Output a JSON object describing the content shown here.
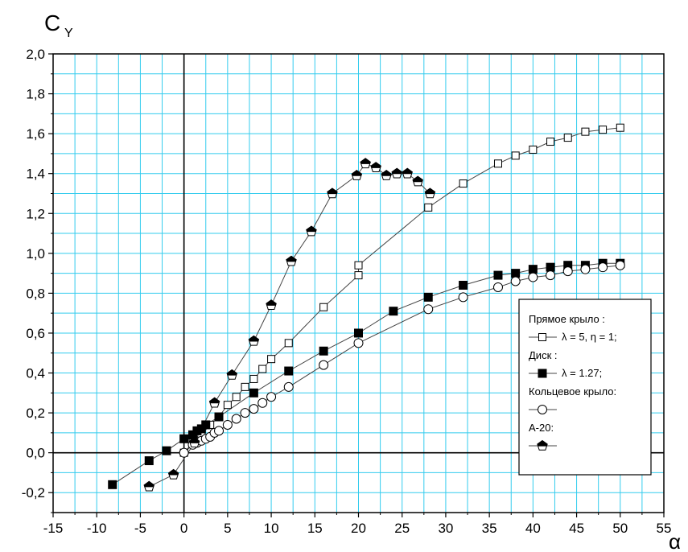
{
  "chart_data": {
    "type": "scatter",
    "title": "",
    "ylabel_main": "C",
    "ylabel_sub": "Y",
    "xlabel": "α",
    "xlim": [
      -15,
      55
    ],
    "ylim": [
      -0.3,
      2.0
    ],
    "x_ticks": [
      -15,
      -10,
      -5,
      0,
      5,
      10,
      15,
      20,
      25,
      30,
      35,
      40,
      45,
      50,
      55
    ],
    "y_ticks": [
      -0.2,
      0.0,
      0.2,
      0.4,
      0.6,
      0.8,
      1.0,
      1.2,
      1.4,
      1.6,
      1.8,
      2.0
    ],
    "x_tick_labels": [
      "-15",
      "-10",
      "-5",
      "0",
      "5",
      "10",
      "15",
      "20",
      "25",
      "30",
      "35",
      "40",
      "45",
      "50",
      "55"
    ],
    "y_tick_labels": [
      "-0,2",
      "0,0",
      "0,2",
      "0,4",
      "0,6",
      "0,8",
      "1,0",
      "1,2",
      "1,4",
      "1,6",
      "1,8",
      "2,0"
    ],
    "grid": true,
    "grid_color": "#33ccee",
    "legend_position": "right",
    "legend": [
      {
        "heading": "Прямое крыло :",
        "label": "λ = 5, η = 1;",
        "marker": "open-square"
      },
      {
        "heading": "Диск :",
        "label": "λ = 1.27;",
        "marker": "filled-square"
      },
      {
        "heading": "Кольцевое крыло:",
        "label": "",
        "marker": "open-circle"
      },
      {
        "heading": "А-20:",
        "label": "",
        "marker": "pentagon-half"
      }
    ],
    "series": [
      {
        "marker": "open-square",
        "points": [
          [
            0,
            0
          ],
          [
            1,
            0.05
          ],
          [
            2,
            0.09
          ],
          [
            3,
            0.14
          ],
          [
            4,
            0.18
          ],
          [
            5,
            0.24
          ],
          [
            6,
            0.28
          ],
          [
            7,
            0.33
          ],
          [
            8,
            0.37
          ],
          [
            9,
            0.42
          ],
          [
            10,
            0.47
          ],
          [
            12,
            0.55
          ],
          [
            16,
            0.73
          ],
          [
            20,
            0.89
          ],
          [
            20,
            0.94
          ],
          [
            28,
            1.23
          ],
          [
            32,
            1.35
          ],
          [
            36,
            1.45
          ],
          [
            38,
            1.49
          ],
          [
            40,
            1.52
          ],
          [
            42,
            1.56
          ],
          [
            44,
            1.58
          ],
          [
            46,
            1.61
          ],
          [
            48,
            1.62
          ],
          [
            50,
            1.63
          ]
        ]
      },
      {
        "marker": "filled-square",
        "points": [
          [
            -8.2,
            -0.16
          ],
          [
            -4,
            -0.04
          ],
          [
            -2,
            0.01
          ],
          [
            0,
            0.07
          ],
          [
            1,
            0.09
          ],
          [
            1.5,
            0.11
          ],
          [
            2,
            0.12
          ],
          [
            2.5,
            0.14
          ],
          [
            4,
            0.18
          ],
          [
            8,
            0.3
          ],
          [
            12,
            0.41
          ],
          [
            16,
            0.51
          ],
          [
            20,
            0.6
          ],
          [
            24,
            0.71
          ],
          [
            28,
            0.78
          ],
          [
            32,
            0.84
          ],
          [
            36,
            0.89
          ],
          [
            38,
            0.9
          ],
          [
            40,
            0.92
          ],
          [
            42,
            0.93
          ],
          [
            44,
            0.94
          ],
          [
            46,
            0.94
          ],
          [
            48,
            0.95
          ],
          [
            50,
            0.95
          ]
        ]
      },
      {
        "marker": "open-circle",
        "points": [
          [
            0,
            0
          ],
          [
            1,
            0.04
          ],
          [
            1.5,
            0.05
          ],
          [
            2,
            0.06
          ],
          [
            2.5,
            0.07
          ],
          [
            3,
            0.08
          ],
          [
            3.5,
            0.1
          ],
          [
            4,
            0.11
          ],
          [
            5,
            0.14
          ],
          [
            6,
            0.17
          ],
          [
            7,
            0.2
          ],
          [
            8,
            0.22
          ],
          [
            9,
            0.25
          ],
          [
            10,
            0.28
          ],
          [
            12,
            0.33
          ],
          [
            16,
            0.44
          ],
          [
            20,
            0.55
          ],
          [
            28,
            0.72
          ],
          [
            32,
            0.78
          ],
          [
            36,
            0.83
          ],
          [
            38,
            0.86
          ],
          [
            40,
            0.88
          ],
          [
            42,
            0.89
          ],
          [
            44,
            0.91
          ],
          [
            46,
            0.92
          ],
          [
            48,
            0.93
          ],
          [
            50,
            0.94
          ]
        ]
      },
      {
        "marker": "pentagon-half",
        "points": [
          [
            -4,
            -0.17
          ],
          [
            -1.2,
            -0.11
          ],
          [
            1.2,
            0.05
          ],
          [
            3.5,
            0.25
          ],
          [
            5.5,
            0.39
          ],
          [
            8,
            0.56
          ],
          [
            10,
            0.74
          ],
          [
            12.3,
            0.96
          ],
          [
            14.6,
            1.11
          ],
          [
            17,
            1.3
          ],
          [
            19.8,
            1.39
          ],
          [
            20.8,
            1.45
          ],
          [
            22,
            1.43
          ],
          [
            23.2,
            1.39
          ],
          [
            24.4,
            1.4
          ],
          [
            25.6,
            1.4
          ],
          [
            26.8,
            1.36
          ],
          [
            28.2,
            1.3
          ]
        ]
      }
    ]
  }
}
